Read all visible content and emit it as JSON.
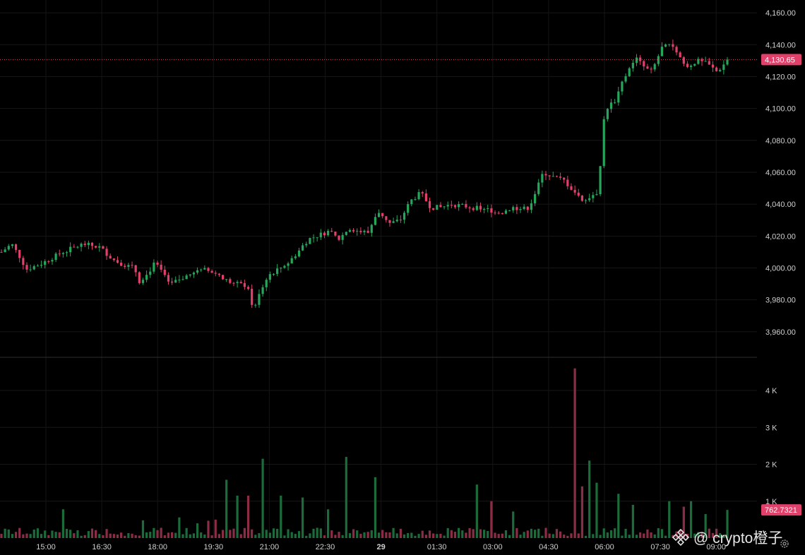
{
  "chart_data": {
    "type": "candlestick",
    "price_axis": {
      "ticks": [
        "3,960.00",
        "3,980.00",
        "4,000.00",
        "4,020.00",
        "4,040.00",
        "4,060.00",
        "4,080.00",
        "4,100.00",
        "4,120.00",
        "4,140.00",
        "4,160.00"
      ],
      "range": [
        3944,
        4168
      ]
    },
    "time_axis": {
      "ticks": [
        "15:00",
        "16:30",
        "18:00",
        "19:30",
        "21:00",
        "22:30",
        "29",
        "01:30",
        "03:00",
        "04:30",
        "06:00",
        "07:30",
        "09:00"
      ],
      "bold_tick": "29"
    },
    "last_price": {
      "value": 4130.65,
      "label": "4,130.65",
      "color": "#e0406a"
    },
    "volume_axis": {
      "ticks": [
        "1 K",
        "2 K",
        "3 K",
        "4 K"
      ],
      "range": [
        0,
        4900
      ]
    },
    "last_volume": {
      "value": 762.7321,
      "label": "762.7321",
      "color": "#e0406a"
    },
    "candle_count": 201,
    "colors": {
      "up": "#26a65b",
      "down": "#e0406a",
      "vol_up": "#1c6b3b",
      "vol_down": "#8c2d46"
    },
    "price_path": [
      [
        0,
        4010
      ],
      [
        5,
        4015
      ],
      [
        10,
        4005
      ],
      [
        12,
        3999
      ],
      [
        20,
        4003
      ],
      [
        30,
        4010
      ],
      [
        40,
        4015
      ],
      [
        48,
        4013
      ],
      [
        55,
        4005
      ],
      [
        60,
        4002
      ],
      [
        65,
        4000
      ],
      [
        68,
        3990
      ],
      [
        75,
        4003
      ],
      [
        80,
        3995
      ],
      [
        82,
        3989
      ],
      [
        90,
        3995
      ],
      [
        100,
        3999
      ],
      [
        110,
        3992
      ],
      [
        115,
        3990
      ],
      [
        120,
        3989
      ],
      [
        122,
        3985
      ],
      [
        123,
        3970
      ],
      [
        125,
        3980
      ],
      [
        130,
        3995
      ],
      [
        140,
        4003
      ],
      [
        145,
        4010
      ],
      [
        150,
        4018
      ],
      [
        160,
        4023
      ],
      [
        165,
        4018
      ],
      [
        170,
        4025
      ],
      [
        175,
        4023
      ],
      [
        180,
        4022
      ],
      [
        182,
        4032
      ],
      [
        185,
        4035
      ],
      [
        190,
        4028
      ],
      [
        195,
        4030
      ],
      [
        200,
        4042
      ],
      [
        205,
        4047
      ],
      [
        210,
        4038
      ],
      [
        215,
        4038
      ],
      [
        220,
        4040
      ],
      [
        230,
        4038
      ],
      [
        240,
        4036
      ],
      [
        245,
        4035
      ],
      [
        250,
        4038
      ],
      [
        255,
        4037
      ],
      [
        258,
        4038
      ],
      [
        262,
        4050
      ],
      [
        265,
        4060
      ],
      [
        270,
        4057
      ],
      [
        275,
        4055
      ],
      [
        280,
        4048
      ],
      [
        285,
        4042
      ],
      [
        288,
        4045
      ],
      [
        292,
        4048
      ],
      [
        295,
        4099
      ],
      [
        300,
        4105
      ],
      [
        305,
        4120
      ],
      [
        310,
        4132
      ],
      [
        315,
        4125
      ],
      [
        318,
        4123
      ],
      [
        323,
        4138
      ],
      [
        328,
        4140
      ],
      [
        332,
        4132
      ],
      [
        335,
        4125
      ],
      [
        340,
        4130
      ],
      [
        345,
        4128
      ],
      [
        350,
        4123
      ],
      [
        355,
        4130
      ]
    ],
    "volume_spikes": [
      [
        31,
        780
      ],
      [
        69,
        480
      ],
      [
        87,
        560
      ],
      [
        95,
        400
      ],
      [
        101,
        470
      ],
      [
        104,
        500
      ],
      [
        110,
        1580
      ],
      [
        115,
        1150
      ],
      [
        120,
        1150
      ],
      [
        128,
        2150
      ],
      [
        137,
        1150
      ],
      [
        148,
        1100
      ],
      [
        160,
        780
      ],
      [
        168,
        2200
      ],
      [
        182,
        1650
      ],
      [
        233,
        1450
      ],
      [
        240,
        1000
      ],
      [
        250,
        720
      ],
      [
        281,
        4600
      ],
      [
        284,
        1400
      ],
      [
        287,
        2100
      ],
      [
        291,
        1500
      ],
      [
        301,
        1200
      ],
      [
        309,
        900
      ],
      [
        326,
        1000
      ],
      [
        334,
        850
      ],
      [
        338,
        1000
      ],
      [
        344,
        650
      ]
    ]
  },
  "watermark": {
    "text": "@ crypto橙子",
    "logo_icon": "binance-logo-icon"
  },
  "settings_icon": "settings-gear-icon"
}
